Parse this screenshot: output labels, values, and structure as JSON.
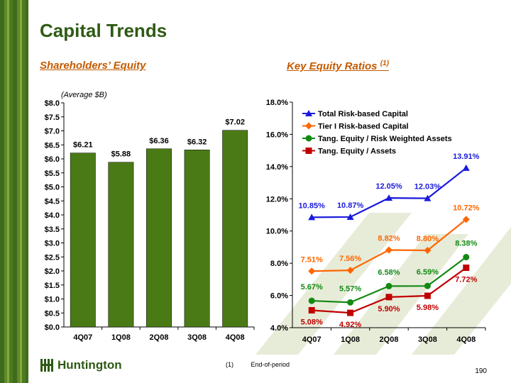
{
  "title": "Capital Trends",
  "left_subtitle": "Shareholders’ Equity",
  "right_subtitle": "Key Equity Ratios",
  "right_subtitle_note": "(1)",
  "avg_label": "(Average $B)",
  "footnote_num": "(1)",
  "footnote_text": "End-of-period",
  "page_number": "190",
  "logo_text": "Huntington",
  "colors": {
    "brand_green": "#2f5a14",
    "accent_orange": "#c45a00",
    "bar": "#4a7a16",
    "blue": "#1a1adc",
    "orange": "#ff6600",
    "green": "#138a13",
    "red": "#c00000"
  },
  "chart_data": [
    {
      "type": "bar",
      "categories": [
        "4Q07",
        "1Q08",
        "2Q08",
        "3Q08",
        "4Q08"
      ],
      "values": [
        6.21,
        5.88,
        6.36,
        6.32,
        7.02
      ],
      "value_labels": [
        "$6.21",
        "$5.88",
        "$6.36",
        "$6.32",
        "$7.02"
      ],
      "ylim": [
        0,
        8
      ],
      "yticks": [
        "$0.0",
        "$0.5",
        "$1.0",
        "$1.5",
        "$2.0",
        "$2.5",
        "$3.0",
        "$3.5",
        "$4.0",
        "$4.5",
        "$5.0",
        "$5.5",
        "$6.0",
        "$6.5",
        "$7.0",
        "$7.5",
        "$8.0"
      ]
    },
    {
      "type": "line",
      "categories": [
        "4Q07",
        "1Q08",
        "2Q08",
        "3Q08",
        "4Q08"
      ],
      "ylim": [
        4,
        18
      ],
      "yticks": [
        "4.0%",
        "6.0%",
        "8.0%",
        "10.0%",
        "12.0%",
        "14.0%",
        "16.0%",
        "18.0%"
      ],
      "legend_position": "top-right",
      "series": [
        {
          "name": "Total Risk-based Capital",
          "values": [
            10.85,
            10.87,
            12.05,
            12.03,
            13.91
          ],
          "labels": [
            "10.85%",
            "10.87%",
            "12.05%",
            "12.03%",
            "13.91%"
          ],
          "color": "#1a1adc",
          "marker": "triangle"
        },
        {
          "name": "Tier I Risk-based Capital",
          "values": [
            7.51,
            7.56,
            8.82,
            8.8,
            10.72
          ],
          "labels": [
            "7.51%",
            "7.56%",
            "8.82%",
            "8.80%",
            "10.72%"
          ],
          "color": "#ff6600",
          "marker": "diamond"
        },
        {
          "name": "Tang. Equity / Risk Weighted Assets",
          "values": [
            5.67,
            5.57,
            6.58,
            6.59,
            8.38
          ],
          "labels": [
            "5.67%",
            "5.57%",
            "6.58%",
            "6.59%",
            "8.38%"
          ],
          "color": "#138a13",
          "marker": "circle"
        },
        {
          "name": "Tang. Equity / Assets",
          "values": [
            5.08,
            4.92,
            5.9,
            5.98,
            7.72
          ],
          "labels": [
            "5.08%",
            "4.92%",
            "5.90%",
            "5.98%",
            "7.72%"
          ],
          "color": "#c00000",
          "marker": "square"
        }
      ]
    }
  ]
}
